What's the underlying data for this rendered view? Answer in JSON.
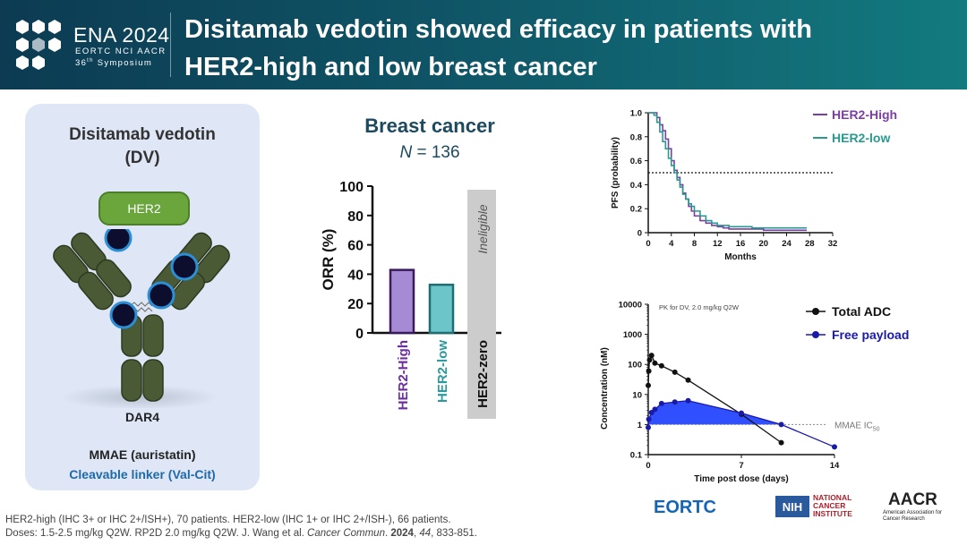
{
  "header": {
    "logo_title": "ENA 2024",
    "logo_sub": "EORTC  NCI  AACR",
    "logo_symp_num": "36",
    "logo_symp_suffix": "th",
    "logo_symp_word": "Symposium",
    "title_line1": "Disitamab vedotin showed efficacy in patients with",
    "title_line2": "HER2-high and low breast cancer",
    "colors": {
      "bg_start": "#0c3b52",
      "bg_end": "#137a80"
    }
  },
  "left_panel": {
    "name": "Disitamab vedotin",
    "abbr": "(DV)",
    "her2_label": "HER2",
    "dar_label": "DAR4",
    "payload_label": "MMAE (auristatin)",
    "linker_label": "Cleavable linker (Val-Cit)"
  },
  "orr": {
    "title": "Breast cancer",
    "n_label": "N",
    "n_value": "= 136"
  },
  "footnote": {
    "line1": "HER2-high (IHC 3+ or IHC 2+/ISH+), 70 patients. HER2-low (IHC 1+ or IHC 2+/ISH-), 66 patients.",
    "line2_pre": "Doses: 1.5-2.5 mg/kg Q2W. RP2D 2.0 mg/kg Q2W. J. Wang et al. ",
    "line2_journal": "Cancer Commun",
    "line2_mid": ". ",
    "line2_year": "2024",
    "line2_sep": ", ",
    "line2_vol": "44",
    "line2_post": ", 833-851."
  },
  "footer_logos": {
    "eortc": "EORTC",
    "nih": "NIH",
    "nci_line1": "NATIONAL",
    "nci_line2": "CANCER",
    "nci_line3": "INSTITUTE",
    "aacr": "AACR",
    "aacr_sub": "American Association for Cancer Research"
  },
  "chart_data": [
    {
      "type": "bar",
      "title": "Breast cancer",
      "xlabel": "",
      "ylabel": "ORR (%)",
      "ylim": [
        0,
        100
      ],
      "yticks": [
        0,
        20,
        40,
        60,
        80,
        100
      ],
      "categories": [
        "HER2-High",
        "HER2-low",
        "HER2-zero"
      ],
      "values": [
        42.9,
        32.8,
        null
      ],
      "colors": [
        "#a58bd4",
        "#6cc5c9",
        "#cccccc"
      ],
      "edge_colors": [
        "#3a1a5e",
        "#1d6f74",
        "#cccccc"
      ],
      "label_colors": [
        "#6b2fa3",
        "#2a9aa0",
        "#111111"
      ],
      "annotations": [
        "Ineligible"
      ]
    },
    {
      "type": "line",
      "title": "",
      "xlabel": "Months",
      "ylabel": "PFS (probability)",
      "xlim": [
        0,
        32
      ],
      "ylim": [
        0,
        1.0
      ],
      "xticks": [
        0,
        4,
        8,
        12,
        16,
        20,
        24,
        28,
        32
      ],
      "yticks": [
        0,
        0.2,
        0.4,
        0.6,
        0.8,
        1.0
      ],
      "ytick_labels": [
        "0",
        "0.2",
        "0.4",
        "0.6",
        "0.8",
        "1.0"
      ],
      "reference_line": {
        "y": 0.5,
        "style": "dotted"
      },
      "legend_position": "top-right",
      "series": [
        {
          "name": "HER2-High",
          "color": "#7b3fa3",
          "x": [
            0,
            1,
            1.5,
            2,
            2.5,
            3,
            3.5,
            4,
            4.5,
            5,
            5.5,
            6,
            6.5,
            7,
            7.5,
            8,
            9,
            10,
            11,
            12,
            13,
            14,
            16,
            18,
            20,
            22,
            24,
            26,
            27.5
          ],
          "y": [
            1.0,
            1.0,
            0.96,
            0.9,
            0.85,
            0.78,
            0.7,
            0.6,
            0.52,
            0.46,
            0.4,
            0.33,
            0.28,
            0.22,
            0.18,
            0.14,
            0.1,
            0.08,
            0.06,
            0.05,
            0.04,
            0.03,
            0.03,
            0.03,
            0.02,
            0.02,
            0.02,
            0.02,
            0.02
          ]
        },
        {
          "name": "HER2-low",
          "color": "#2a9a8f",
          "x": [
            0,
            1,
            1.5,
            2,
            2.5,
            3,
            3.5,
            4,
            4.5,
            5,
            5.5,
            6,
            6.5,
            7,
            7.5,
            8,
            9,
            10,
            11,
            12,
            13,
            14,
            16,
            18,
            20,
            22,
            24,
            26,
            27.5
          ],
          "y": [
            1.0,
            0.98,
            0.92,
            0.84,
            0.76,
            0.7,
            0.62,
            0.56,
            0.5,
            0.44,
            0.38,
            0.32,
            0.28,
            0.24,
            0.22,
            0.18,
            0.14,
            0.1,
            0.08,
            0.06,
            0.06,
            0.05,
            0.05,
            0.04,
            0.04,
            0.04,
            0.04,
            0.04,
            0.04
          ]
        }
      ]
    },
    {
      "type": "line",
      "title": "PK for DV, 2.0 mg/kg Q2W",
      "xlabel": "Time post dose (days)",
      "ylabel": "Concentration (nM)",
      "yscale": "log",
      "xlim": [
        0,
        14
      ],
      "ylim": [
        0.1,
        10000
      ],
      "xticks": [
        0,
        7,
        14
      ],
      "yticks": [
        0.1,
        1,
        10,
        100,
        1000,
        10000
      ],
      "ytick_labels": [
        "0.1",
        "1",
        "10",
        "100",
        "1000",
        "10000"
      ],
      "reference_line": {
        "y": 1,
        "label": "MMAE IC",
        "label_sub": "50",
        "style": "dotted"
      },
      "legend_position": "top-right",
      "series": [
        {
          "name": "Total ADC",
          "color": "#111111",
          "x": [
            0,
            0.04,
            0.1,
            0.25,
            0.5,
            1,
            2,
            3,
            7,
            10
          ],
          "y": [
            20,
            60,
            140,
            200,
            110,
            90,
            55,
            30,
            2.2,
            0.25
          ]
        },
        {
          "name": "Free payload",
          "color": "#1a1aa8",
          "x": [
            0,
            0.04,
            0.25,
            0.5,
            1,
            2,
            3,
            7,
            10,
            14
          ],
          "y": [
            0.8,
            1.5,
            2.5,
            3.2,
            5,
            5.6,
            6.2,
            2.4,
            1.0,
            0.18
          ]
        }
      ]
    }
  ]
}
